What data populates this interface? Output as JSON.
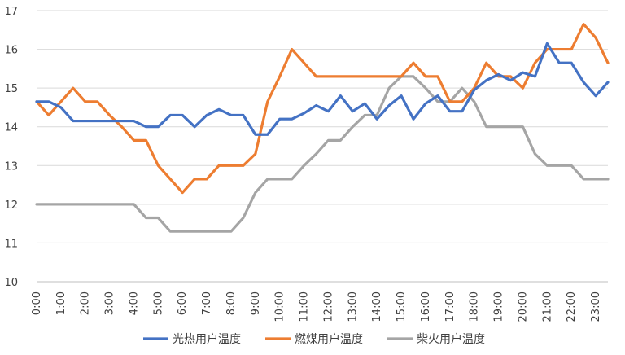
{
  "chart_data": {
    "type": "line",
    "ylim": [
      10,
      17
    ],
    "yticks": [
      10,
      11,
      12,
      13,
      14,
      15,
      16,
      17
    ],
    "x_tick_labels": [
      "0:00",
      "1:00",
      "2:00",
      "3:00",
      "4:00",
      "5:00",
      "6:00",
      "7:00",
      "8:00",
      "9:00",
      "10:00",
      "11:00",
      "12:00",
      "13:00",
      "14:00",
      "15:00",
      "16:00",
      "17:00",
      "18:00",
      "19:00",
      "20:00",
      "21:00",
      "22:00",
      "23:00"
    ],
    "x_step_hours": 0.5,
    "grid": "horizontal",
    "legend_position": "bottom",
    "series": [
      {
        "name": "光热用户温度",
        "color": "#4472C4",
        "values": [
          14.65,
          14.65,
          14.5,
          14.15,
          14.15,
          14.15,
          14.15,
          14.15,
          14.15,
          14.0,
          14.0,
          14.3,
          14.3,
          14.0,
          14.3,
          14.45,
          14.3,
          14.3,
          13.8,
          13.8,
          14.2,
          14.2,
          14.35,
          14.55,
          14.4,
          14.8,
          14.4,
          14.6,
          14.2,
          14.55,
          14.8,
          14.2,
          14.6,
          14.8,
          14.4,
          14.4,
          14.95,
          15.2,
          15.35,
          15.2,
          15.4,
          15.3,
          16.15,
          15.65,
          15.65,
          15.15,
          14.8,
          15.15
        ]
      },
      {
        "name": "燃煤用户温度",
        "color": "#ED7D31",
        "values": [
          14.65,
          14.3,
          14.65,
          15.0,
          14.65,
          14.65,
          14.3,
          14.0,
          13.65,
          13.65,
          13.0,
          12.65,
          12.3,
          12.65,
          12.65,
          13.0,
          13.0,
          13.0,
          13.3,
          14.65,
          15.3,
          16.0,
          15.65,
          15.3,
          15.3,
          15.3,
          15.3,
          15.3,
          15.3,
          15.3,
          15.3,
          15.65,
          15.3,
          15.3,
          14.65,
          14.65,
          15.0,
          15.65,
          15.3,
          15.3,
          15.0,
          15.65,
          16.0,
          16.0,
          16.0,
          16.65,
          16.3,
          15.65
        ]
      },
      {
        "name": "柴火用户温度",
        "color": "#A5A5A5",
        "values": [
          12.0,
          12.0,
          12.0,
          12.0,
          12.0,
          12.0,
          12.0,
          12.0,
          12.0,
          11.65,
          11.65,
          11.3,
          11.3,
          11.3,
          11.3,
          11.3,
          11.3,
          11.65,
          12.3,
          12.65,
          12.65,
          12.65,
          13.0,
          13.3,
          13.65,
          13.65,
          14.0,
          14.3,
          14.3,
          15.0,
          15.3,
          15.3,
          15.0,
          14.65,
          14.65,
          15.0,
          14.65,
          14.0,
          14.0,
          14.0,
          14.0,
          13.3,
          13.0,
          13.0,
          13.0,
          12.65,
          12.65,
          12.65
        ]
      }
    ]
  }
}
